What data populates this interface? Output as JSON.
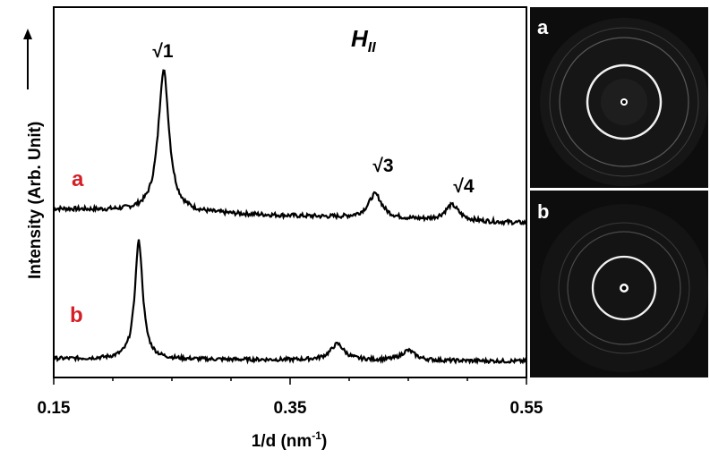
{
  "chart_data": {
    "type": "line",
    "ylabel": "Intensity (Arb. Unit)",
    "xlabel_main": "1/d (nm",
    "xlabel_exp": "-1",
    "xlabel_close": ")",
    "xlim": [
      0.15,
      0.55
    ],
    "x_ticks": [
      "0.15",
      "0.35",
      "0.55"
    ],
    "phase_label_main": "H",
    "phase_label_sub": "II",
    "peak_labels": [
      {
        "text": "√1",
        "x": 0.243
      },
      {
        "text": "√3",
        "x": 0.422
      },
      {
        "text": "√4",
        "x": 0.487
      }
    ],
    "series": [
      {
        "name": "a",
        "color": "#000000",
        "label_color": "#d41f26",
        "baseline": 0.13,
        "peaks": [
          {
            "x": 0.243,
            "height": 1.0,
            "width": 0.0055
          },
          {
            "x": 0.422,
            "height": 0.17,
            "width": 0.007
          },
          {
            "x": 0.487,
            "height": 0.11,
            "width": 0.007
          }
        ],
        "baseline_slope": 0.1
      },
      {
        "name": "b",
        "color": "#000000",
        "label_color": "#d41f26",
        "baseline": 0.03,
        "peaks": [
          {
            "x": 0.222,
            "height": 0.95,
            "width": 0.004
          },
          {
            "x": 0.39,
            "height": 0.13,
            "width": 0.007
          },
          {
            "x": 0.45,
            "height": 0.08,
            "width": 0.007
          }
        ],
        "baseline_slope": 0.02
      }
    ]
  },
  "panels": [
    {
      "label": "a"
    },
    {
      "label": "b"
    }
  ]
}
